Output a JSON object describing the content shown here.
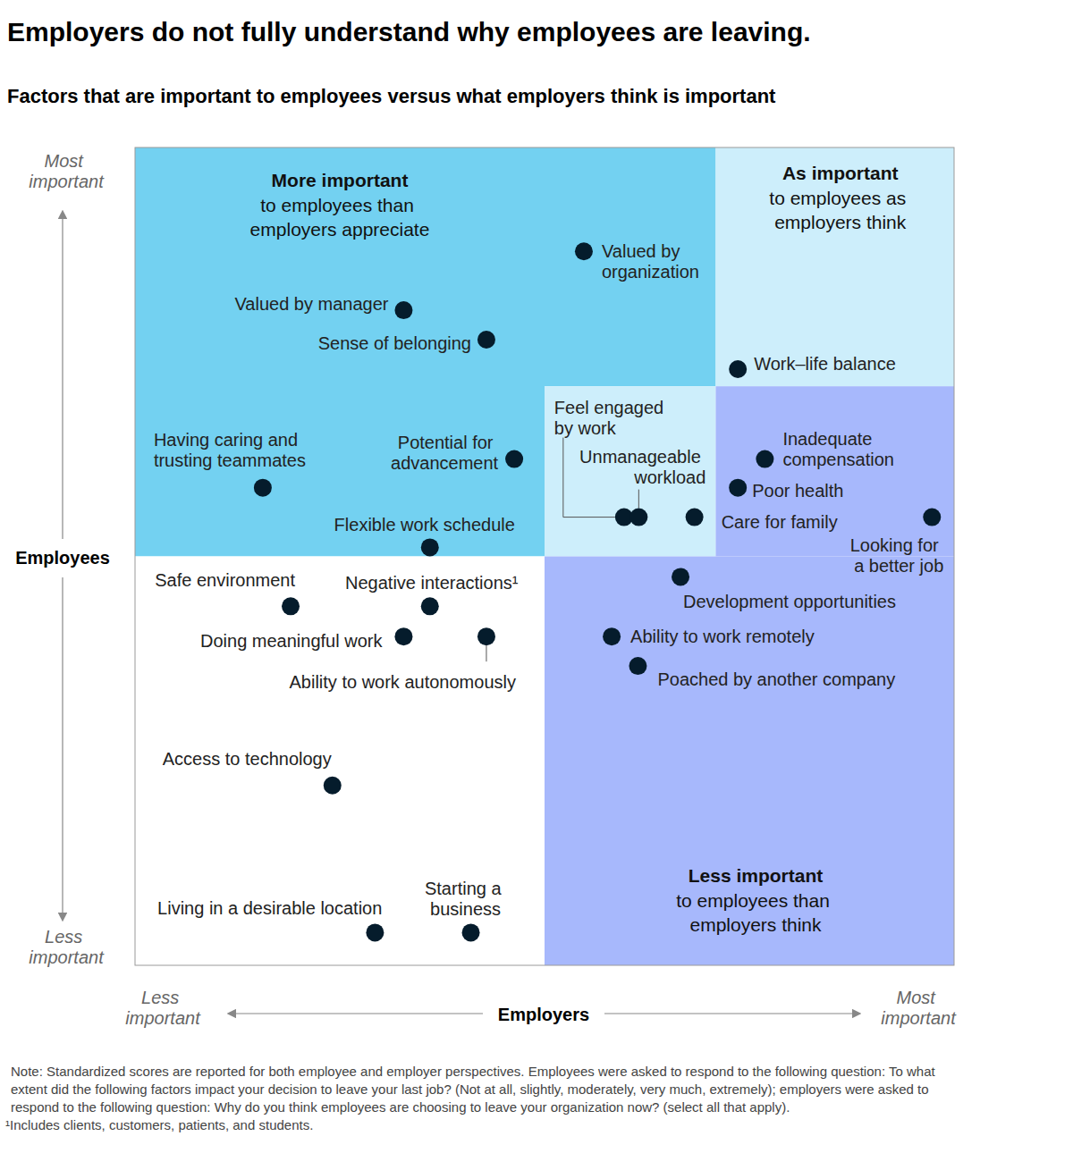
{
  "chart_data": {
    "type": "scatter",
    "title": "Employers do not fully understand why employees are leaving.",
    "subtitle": "Factors that are important to employees versus what employers think is important",
    "xlabel": "Employers",
    "ylabel": "Employees",
    "x_end_labels": [
      "Less important",
      "Most important"
    ],
    "y_end_labels": [
      "Less important",
      "Most important"
    ],
    "xlim": [
      0,
      100
    ],
    "ylim": [
      0,
      100
    ],
    "tick_labels": false,
    "grid": false,
    "marker": "circle",
    "color": "#051c2c",
    "point_labels": [
      "Valued by organization",
      "Valued by manager",
      "Sense of belonging",
      "Work–life balance",
      "Having caring and trusting teammates",
      "Potential for advancement",
      "Inadequate compensation",
      "Poor health",
      "Feel engaged by work",
      "Unmanageable workload",
      "Care for family",
      "Looking for a better job",
      "Flexible work schedule",
      "Development opportunities",
      "Safe environment",
      "Negative interactions¹",
      "Doing meaningful work",
      "Ability to work autonomously",
      "Ability to work remotely",
      "Poached by another company",
      "Access to technology",
      "Living in a desirable location",
      "Starting a business"
    ],
    "x": [
      54.8,
      32.8,
      42.9,
      73.6,
      15.6,
      46.3,
      76.9,
      73.6,
      59.7,
      61.5,
      68.3,
      97.3,
      36.0,
      66.6,
      19.0,
      36.0,
      32.8,
      42.9,
      58.2,
      61.4,
      24.1,
      29.3,
      41.0
    ],
    "values": [
      87.3,
      80.1,
      76.5,
      72.9,
      58.4,
      61.9,
      61.9,
      58.4,
      54.8,
      54.8,
      54.8,
      54.8,
      51.1,
      47.5,
      43.9,
      43.9,
      40.2,
      40.2,
      40.2,
      36.6,
      22.0,
      4.0,
      4.0
    ],
    "zones": [
      {
        "x": [
          0,
          50
        ],
        "y": [
          50,
          100
        ],
        "color": "#73d1f1",
        "label": "More important",
        "label_detail": "to employees than employers appreciate"
      },
      {
        "x": [
          50,
          70.9
        ],
        "y": [
          70.8,
          100
        ],
        "color": "#73d1f1"
      },
      {
        "x": [
          70.9,
          100
        ],
        "y": [
          70.8,
          100
        ],
        "color": "#cdeefb",
        "label": "As important",
        "label_detail": "to employees as employers think"
      },
      {
        "x": [
          50,
          70.9
        ],
        "y": [
          50,
          70.8
        ],
        "color": "#cdeefb"
      },
      {
        "x": [
          70.9,
          100
        ],
        "y": [
          50,
          70.8
        ],
        "color": "#a7b8fc"
      },
      {
        "x": [
          50,
          100
        ],
        "y": [
          0,
          50
        ],
        "color": "#a7b8fc",
        "label": "Less important",
        "label_detail": "to employees than employers think"
      },
      {
        "x": [
          0,
          50
        ],
        "y": [
          0,
          50
        ],
        "color": "#ffffff"
      }
    ],
    "note": "Note: Standardized scores are reported for both employee and employer perspectives. Employees were asked to respond to the following question: To what extent did the following factors impact your decision to leave your last job? (Not at all, slightly, moderately, very much, extremely); employers were asked to respond to the following question: Why do you think employees are choosing to leave your organization now? (select all that apply).",
    "footnote": "¹Includes clients, customers, patients, and students."
  }
}
